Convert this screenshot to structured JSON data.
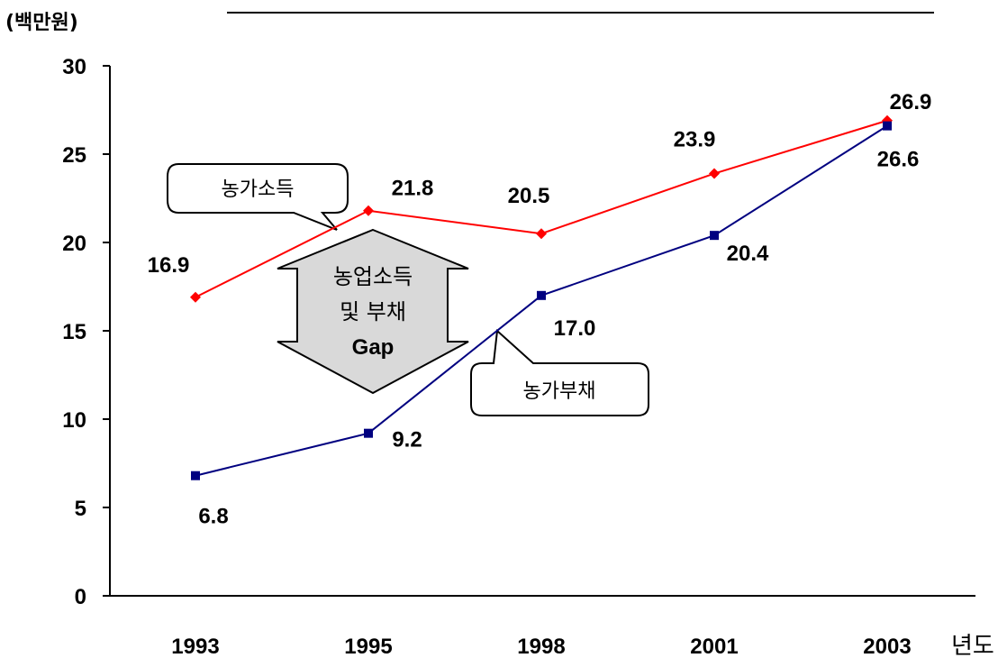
{
  "chart_data": {
    "type": "line",
    "title": "",
    "ylabel": "(백만원)",
    "xlabel": "년도",
    "ylim": [
      0,
      30
    ],
    "yticks": [
      "0",
      "5",
      "10",
      "15",
      "20",
      "25",
      "30"
    ],
    "categories": [
      "1993",
      "1995",
      "1998",
      "2001",
      "2003"
    ],
    "grid": false,
    "series": [
      {
        "name": "농가소득",
        "color": "#ff0000",
        "marker": "diamond",
        "values": [
          16.9,
          21.8,
          20.5,
          23.9,
          26.9
        ],
        "labels": [
          "16.9",
          "21.8",
          "20.5",
          "23.9",
          "26.9"
        ]
      },
      {
        "name": "농가부채",
        "color": "#000080",
        "marker": "square",
        "values": [
          6.8,
          9.2,
          17.0,
          20.4,
          26.6
        ],
        "labels": [
          "6.8",
          "9.2",
          "17.0",
          "20.4",
          "26.6"
        ]
      }
    ],
    "annotations": {
      "gap_line1": "농업소득",
      "gap_line2": "및 부채",
      "gap_line3": "Gap"
    }
  }
}
